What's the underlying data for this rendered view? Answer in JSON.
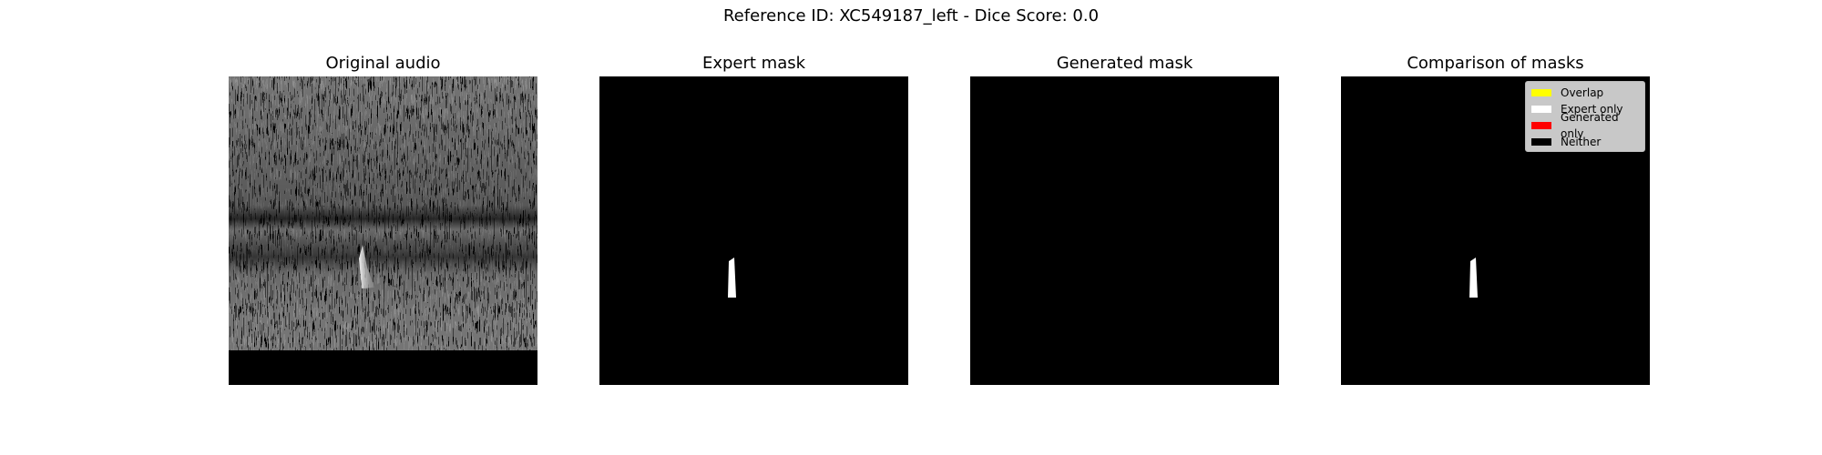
{
  "figure": {
    "suptitle": "Reference ID: XC549187_left - Dice Score: 0.0"
  },
  "panels": [
    {
      "title": "Original audio",
      "kind": "spectrogram-image"
    },
    {
      "title": "Expert mask",
      "kind": "binary-mask"
    },
    {
      "title": "Generated mask",
      "kind": "binary-mask"
    },
    {
      "title": "Comparison of masks",
      "kind": "overlay-mask"
    }
  ],
  "legend": {
    "placement": "top-right",
    "items": [
      {
        "label": "Overlap",
        "color": "#ffff00"
      },
      {
        "label": "Expert only",
        "color": "#ffffff"
      },
      {
        "label": "Generated only",
        "color": "#ff0000"
      },
      {
        "label": "Neither",
        "color": "#000000"
      }
    ]
  },
  "chart_data": {
    "type": "heatmap",
    "title": "Reference ID: XC549187_left - Dice Score: 0.0",
    "reference_id": "XC549187_left",
    "dice_score": 0.0,
    "subplots": [
      "Original audio",
      "Expert mask",
      "Generated mask",
      "Comparison of masks"
    ],
    "expert_mask_region": {
      "x_fraction": [
        0.42,
        0.45
      ],
      "y_fraction": [
        0.59,
        0.72
      ]
    },
    "generated_mask_region": null,
    "axes": "off"
  }
}
